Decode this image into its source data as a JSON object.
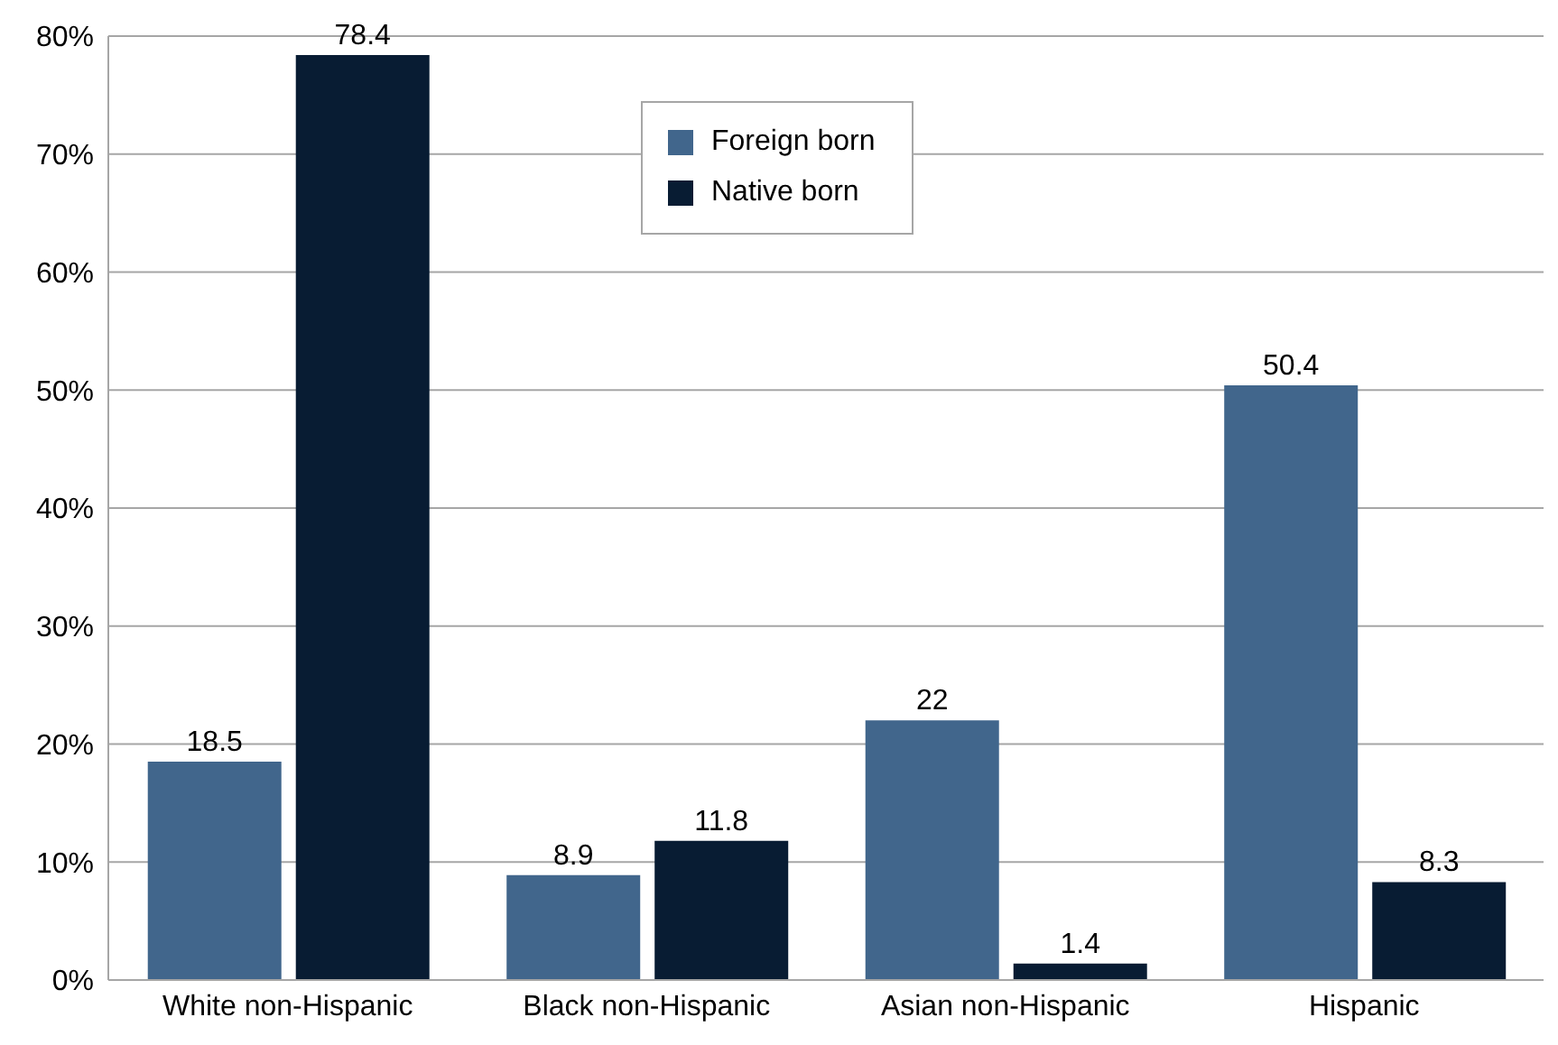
{
  "chart_data": {
    "type": "bar",
    "categories": [
      "White non-Hispanic",
      "Black non-Hispanic",
      "Asian non-Hispanic",
      "Hispanic"
    ],
    "series": [
      {
        "name": "Foreign born",
        "color": "#41668c",
        "values": [
          18.5,
          8.9,
          22,
          50.4
        ]
      },
      {
        "name": "Native born",
        "color": "#081c33",
        "values": [
          78.4,
          11.8,
          1.4,
          8.3
        ]
      }
    ],
    "ylim": [
      0,
      80
    ],
    "yticks": [
      {
        "value": 0,
        "label": "0%"
      },
      {
        "value": 10,
        "label": "10%"
      },
      {
        "value": 20,
        "label": "20%"
      },
      {
        "value": 30,
        "label": "30%"
      },
      {
        "value": 40,
        "label": "40%"
      },
      {
        "value": 50,
        "label": "50%"
      },
      {
        "value": 60,
        "label": "60%"
      },
      {
        "value": 70,
        "label": "70%"
      },
      {
        "value": 80,
        "label": "80%"
      }
    ],
    "grid": "y",
    "legend": "top",
    "data_labels": true
  }
}
